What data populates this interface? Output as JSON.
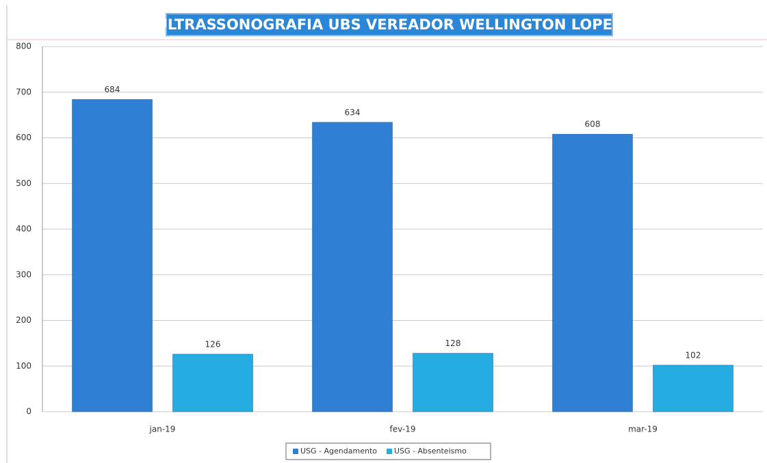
{
  "chart_data": {
    "type": "bar",
    "title": "ULTRASSONOGRAFIA UBS VEREADOR WELLINGTON LOPES",
    "categories": [
      "jan-19",
      "fev-19",
      "mar-19"
    ],
    "series": [
      {
        "name": "USG - Agendamento",
        "color": "#2f7fd4",
        "values": [
          684,
          634,
          608
        ]
      },
      {
        "name": "USG - Absenteismo",
        "color": "#25ace0",
        "values": [
          126,
          128,
          102
        ]
      }
    ],
    "ylim": [
      0,
      800
    ],
    "yticks": [
      0,
      100,
      200,
      300,
      400,
      500,
      600,
      700,
      800
    ],
    "grid": true,
    "legend": "bottom"
  }
}
